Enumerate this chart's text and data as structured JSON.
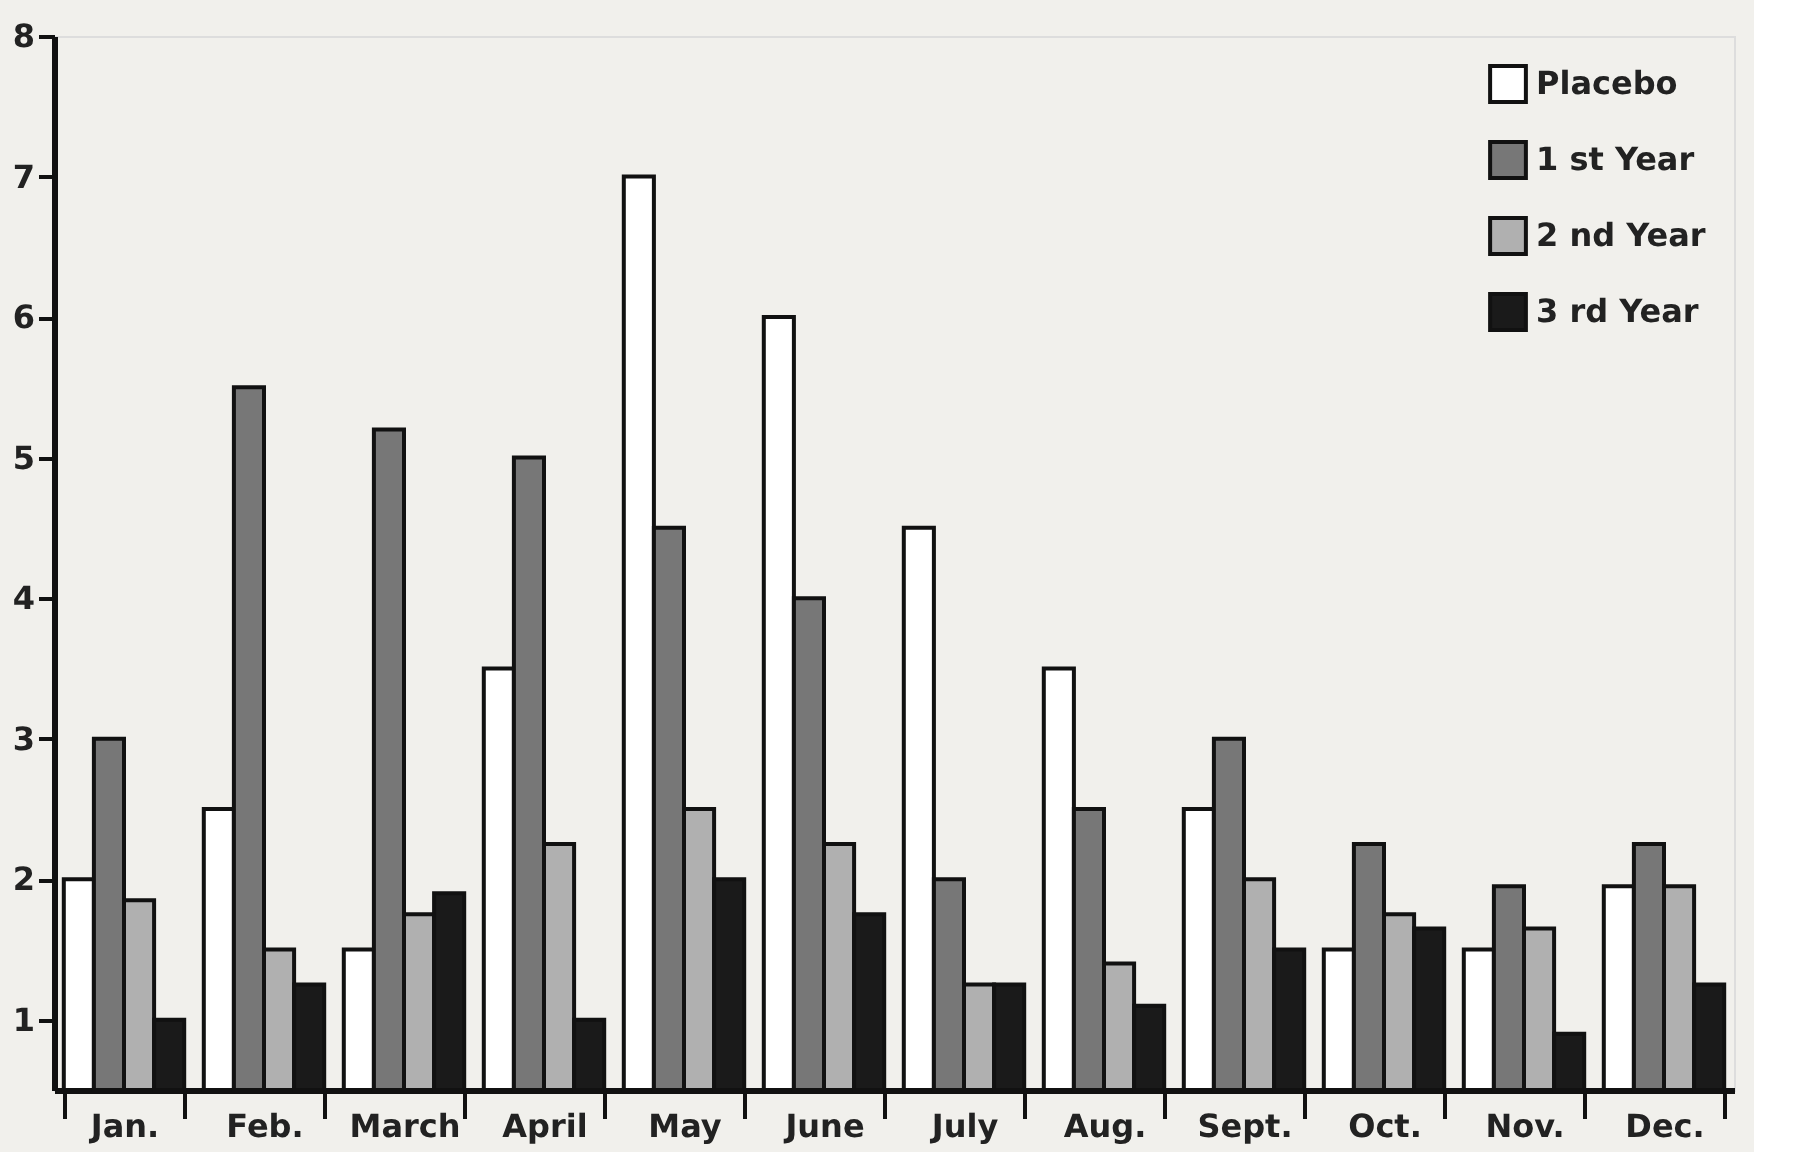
{
  "chart_data": {
    "type": "bar",
    "categories": [
      "Jan.",
      "Feb.",
      "March",
      "April",
      "May",
      "June",
      "July",
      "Aug.",
      "Sept.",
      "Oct.",
      "Nov.",
      "Dec."
    ],
    "series": [
      {
        "name": "Placebo",
        "color": "#ffffff",
        "values": [
          2.0,
          2.5,
          1.5,
          3.5,
          7.0,
          6.0,
          4.5,
          3.5,
          2.5,
          1.5,
          1.5,
          1.95
        ]
      },
      {
        "name": "1 st Year",
        "color": "#777777",
        "values": [
          3.0,
          5.5,
          5.2,
          5.0,
          4.5,
          4.0,
          2.0,
          2.5,
          3.0,
          2.25,
          1.95,
          2.25
        ]
      },
      {
        "name": "2 nd Year",
        "color": "#b0b0b0",
        "values": [
          1.85,
          1.5,
          1.75,
          2.25,
          2.5,
          2.25,
          1.25,
          1.4,
          2.0,
          1.75,
          1.65,
          1.95
        ]
      },
      {
        "name": "3 rd Year",
        "color": "#1a1a1a",
        "values": [
          1.0,
          1.25,
          1.9,
          1.0,
          2.0,
          1.75,
          1.25,
          1.1,
          1.5,
          1.65,
          0.9,
          1.25
        ]
      }
    ],
    "ylim": [
      0.5,
      8
    ],
    "yticks": [
      1,
      2,
      3,
      4,
      5,
      6,
      7,
      8
    ],
    "grid": false,
    "legend": "top right"
  }
}
